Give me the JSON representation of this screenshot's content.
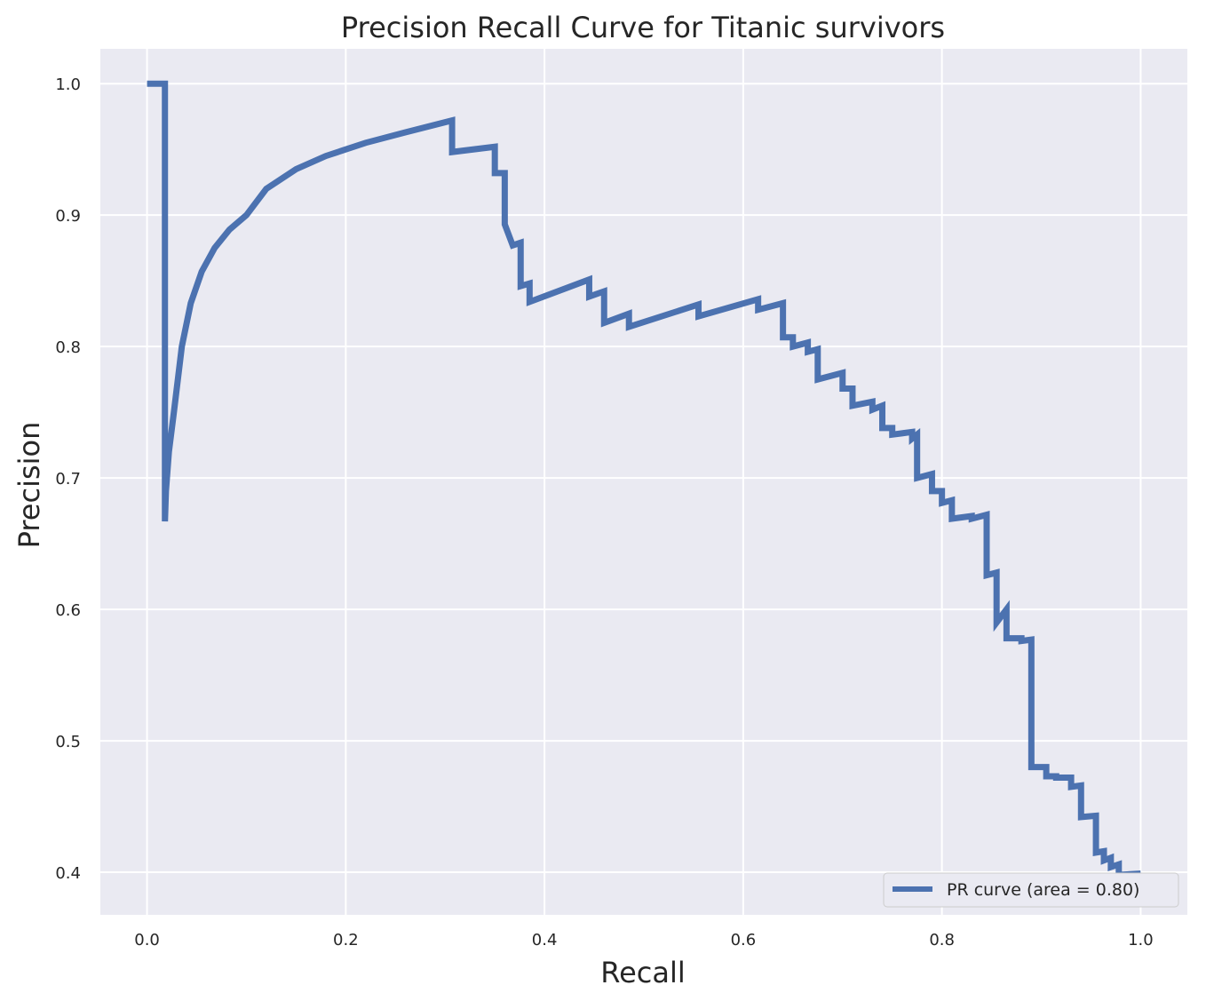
{
  "chart_data": {
    "type": "line",
    "title": "Precision Recall Curve for Titanic survivors",
    "xlabel": "Recall",
    "ylabel": "Precision",
    "xlim": [
      -0.047,
      1.047
    ],
    "ylim": [
      0.3676,
      1.0265
    ],
    "xticks": [
      0.0,
      0.2,
      0.4,
      0.6,
      0.8,
      1.0
    ],
    "xtick_labels": [
      "0.0",
      "0.2",
      "0.4",
      "0.6",
      "0.8",
      "1.0"
    ],
    "yticks": [
      0.4,
      0.5,
      0.6,
      0.7,
      0.8,
      0.9,
      1.0
    ],
    "ytick_labels": [
      "0.4",
      "0.5",
      "0.6",
      "0.7",
      "0.8",
      "0.9",
      "1.0"
    ],
    "grid": true,
    "legend_position": "lower right",
    "series": [
      {
        "name": "PR curve (area = 0.80)",
        "color": "#4c72b0",
        "x": [
          0.0,
          0.018,
          0.018,
          0.019,
          0.022,
          0.027,
          0.035,
          0.044,
          0.055,
          0.068,
          0.083,
          0.1,
          0.12,
          0.15,
          0.18,
          0.22,
          0.26,
          0.307,
          0.307,
          0.35,
          0.35,
          0.36,
          0.36,
          0.368,
          0.376,
          0.376,
          0.385,
          0.385,
          0.445,
          0.445,
          0.46,
          0.46,
          0.485,
          0.485,
          0.555,
          0.555,
          0.615,
          0.615,
          0.64,
          0.64,
          0.65,
          0.65,
          0.665,
          0.665,
          0.675,
          0.675,
          0.7,
          0.7,
          0.71,
          0.71,
          0.73,
          0.73,
          0.74,
          0.74,
          0.75,
          0.75,
          0.77,
          0.77,
          0.775,
          0.775,
          0.79,
          0.79,
          0.8,
          0.8,
          0.81,
          0.81,
          0.83,
          0.83,
          0.845,
          0.845,
          0.855,
          0.855,
          0.865,
          0.865,
          0.88,
          0.88,
          0.89,
          0.89,
          0.905,
          0.905,
          0.915,
          0.915,
          0.93,
          0.93,
          0.94,
          0.94,
          0.955,
          0.955,
          0.963,
          0.963,
          0.97,
          0.97,
          0.978,
          0.978,
          1.0
        ],
        "y": [
          1.0,
          1.0,
          0.667,
          0.69,
          0.72,
          0.75,
          0.8,
          0.833,
          0.857,
          0.875,
          0.889,
          0.9,
          0.92,
          0.935,
          0.945,
          0.955,
          0.963,
          0.972,
          0.948,
          0.952,
          0.932,
          0.932,
          0.893,
          0.877,
          0.879,
          0.846,
          0.848,
          0.834,
          0.851,
          0.838,
          0.842,
          0.818,
          0.825,
          0.815,
          0.832,
          0.823,
          0.836,
          0.828,
          0.833,
          0.807,
          0.807,
          0.8,
          0.803,
          0.796,
          0.798,
          0.775,
          0.78,
          0.768,
          0.768,
          0.755,
          0.758,
          0.752,
          0.755,
          0.738,
          0.738,
          0.733,
          0.735,
          0.73,
          0.733,
          0.7,
          0.703,
          0.69,
          0.69,
          0.681,
          0.683,
          0.669,
          0.671,
          0.669,
          0.672,
          0.626,
          0.628,
          0.59,
          0.6,
          0.578,
          0.578,
          0.576,
          0.577,
          0.48,
          0.48,
          0.473,
          0.473,
          0.472,
          0.472,
          0.465,
          0.466,
          0.442,
          0.443,
          0.415,
          0.416,
          0.409,
          0.411,
          0.404,
          0.406,
          0.398,
          0.399
        ]
      }
    ]
  }
}
